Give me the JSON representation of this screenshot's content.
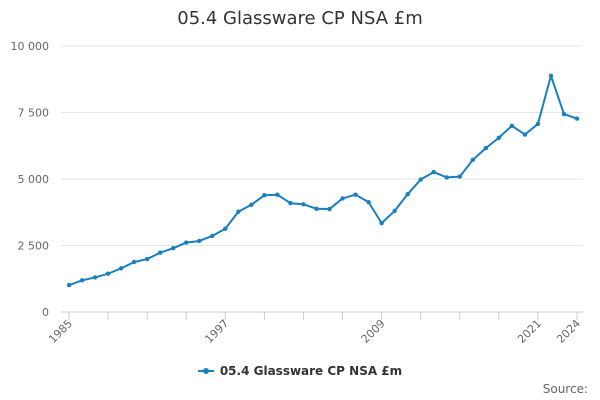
{
  "chart_data": {
    "type": "line",
    "title": "05.4 Glassware CP NSA £m",
    "xlabel": "",
    "ylabel": "",
    "x": [
      1985,
      1986,
      1987,
      1988,
      1989,
      1990,
      1991,
      1992,
      1993,
      1994,
      1995,
      1996,
      1997,
      1998,
      1999,
      2000,
      2001,
      2002,
      2003,
      2004,
      2005,
      2006,
      2007,
      2008,
      2009,
      2010,
      2011,
      2012,
      2013,
      2014,
      2015,
      2016,
      2017,
      2018,
      2019,
      2020,
      2021,
      2022,
      2023,
      2024
    ],
    "x_tick_labels": [
      "1985",
      "1997",
      "2009",
      "2021",
      "2024"
    ],
    "xlim": [
      1985,
      2024
    ],
    "ylim": [
      0,
      10000
    ],
    "y_ticks": [
      0,
      2500,
      5000,
      7500,
      10000
    ],
    "y_tick_labels": [
      "0",
      "2 500",
      "5 000",
      "7 500",
      "10 000"
    ],
    "grid": "horizontal",
    "legend_position": "bottom",
    "series": [
      {
        "name": "05.4 Glassware CP NSA £m",
        "color": "#1a7fbf",
        "values": [
          1010,
          1190,
          1300,
          1440,
          1640,
          1880,
          1990,
          2230,
          2400,
          2610,
          2670,
          2860,
          3130,
          3770,
          4030,
          4390,
          4410,
          4090,
          4050,
          3880,
          3870,
          4270,
          4410,
          4130,
          3340,
          3800,
          4430,
          4980,
          5260,
          5060,
          5090,
          5720,
          6160,
          6550,
          7000,
          6670,
          7070,
          8880,
          7440,
          7270
        ]
      }
    ]
  },
  "legend": {
    "label": "05.4 Glassware CP NSA £m"
  },
  "source_label": "Source:"
}
